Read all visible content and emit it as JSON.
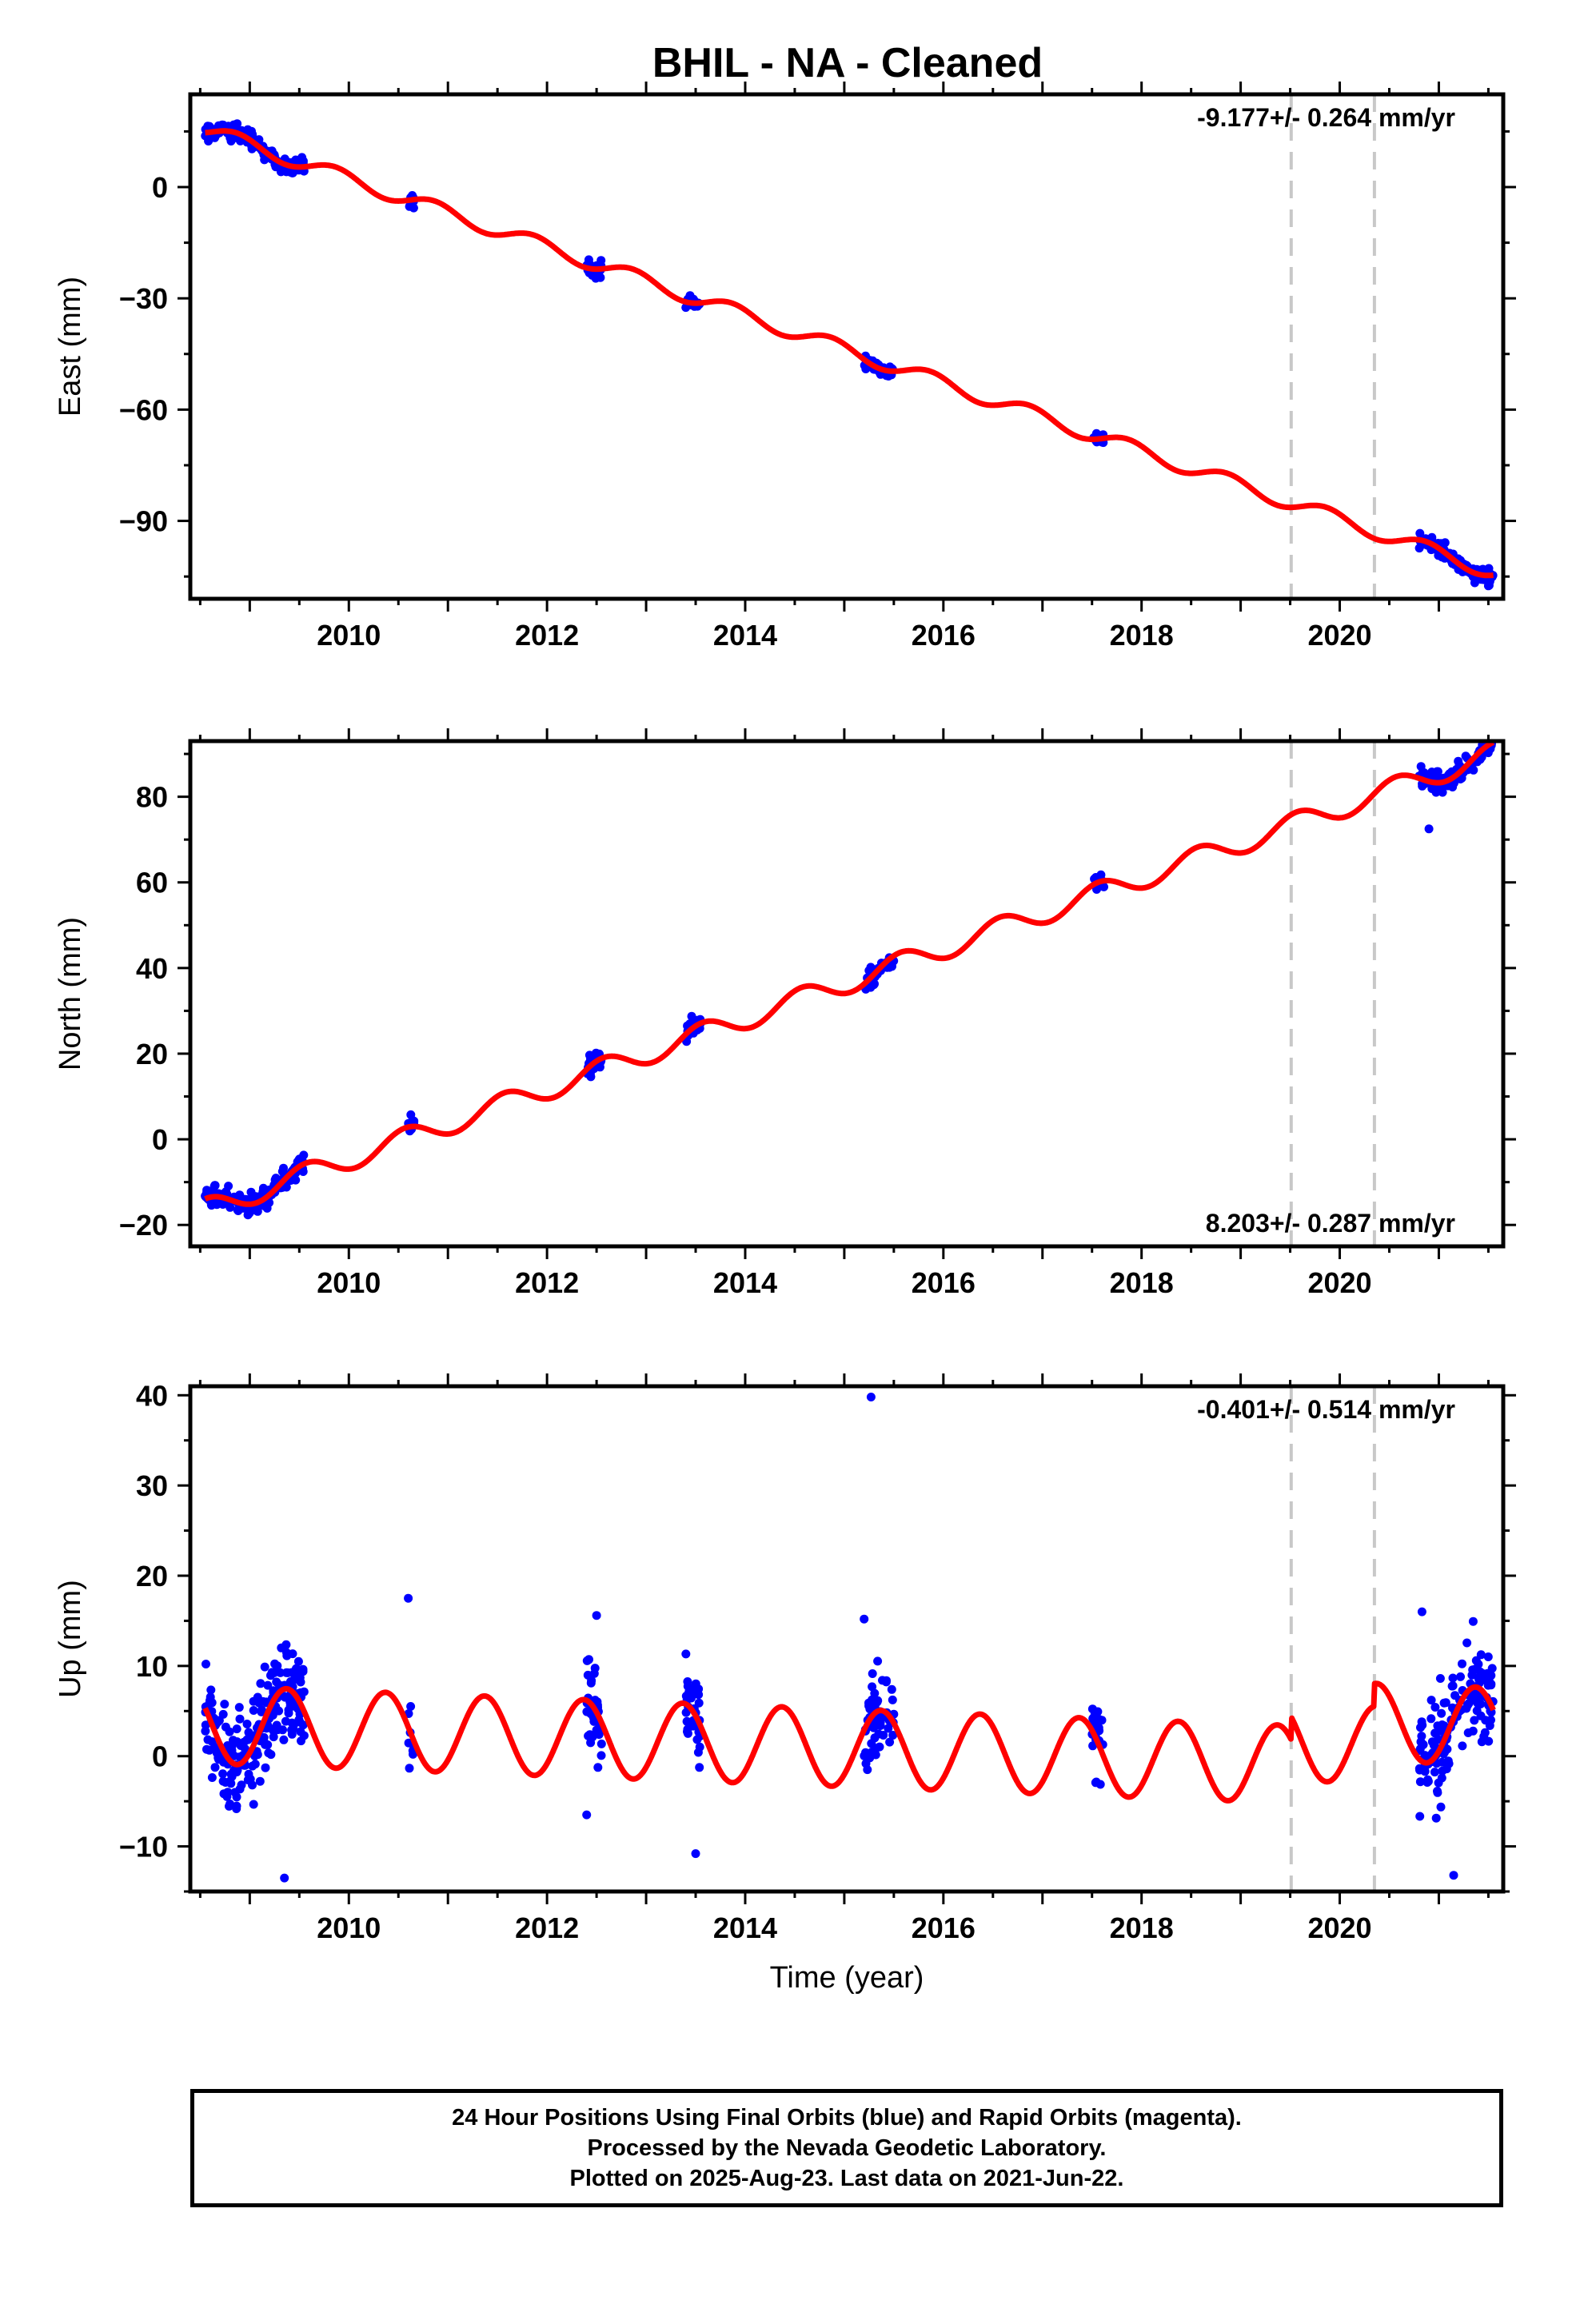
{
  "title": "BHIL  - NA - Cleaned",
  "footer": {
    "line1": "24 Hour Positions Using Final Orbits (blue) and Rapid Orbits (magenta).",
    "line2": "Processed by the Nevada Geodetic Laboratory.",
    "line3": "Plotted on 2025-Aug-23. Last data on 2021-Jun-22."
  },
  "colors": {
    "data": "#0000ff",
    "model": "#ff0000",
    "equipment_change": "#c8c8c8"
  },
  "chart_data": [
    {
      "type": "scatter",
      "component": "east",
      "title": "",
      "xlabel": "",
      "ylabel": "East (mm)",
      "rate_label": "-9.177+/- 0.264 mm/yr",
      "xlim": [
        2008.4,
        2021.65
      ],
      "ylim": [
        -111,
        25
      ],
      "xticks": [
        2010,
        2012,
        2014,
        2016,
        2018,
        2020
      ],
      "xtick_labels": [
        "2010",
        "2012",
        "2014",
        "2016",
        "2018",
        "2020"
      ],
      "yticks": [
        -90,
        -60,
        -30,
        0
      ],
      "ytick_labels": [
        "−90",
        "−60",
        "−30",
        "0"
      ],
      "rate": -9.177,
      "ref_value": 15.5,
      "annual_amplitude": 2.0,
      "annual_phase": 0.62,
      "steps": [
        {
          "x": 2019.51,
          "dy": 0.0
        },
        {
          "x": 2020.35,
          "dy": 0.0
        }
      ],
      "data_segments": [
        {
          "x0": 2008.55,
          "x1": 2009.55,
          "n": 160,
          "spread": 1.6
        },
        {
          "x0": 2010.6,
          "x1": 2010.66,
          "n": 8,
          "spread": 1.4
        },
        {
          "x0": 2012.4,
          "x1": 2012.55,
          "n": 24,
          "spread": 1.6
        },
        {
          "x0": 2013.4,
          "x1": 2013.55,
          "n": 24,
          "spread": 1.3
        },
        {
          "x0": 2015.2,
          "x1": 2015.5,
          "n": 40,
          "spread": 1.4
        },
        {
          "x0": 2017.5,
          "x1": 2017.62,
          "n": 14,
          "spread": 1.3
        },
        {
          "x0": 2020.8,
          "x1": 2021.55,
          "n": 110,
          "spread": 1.5
        }
      ],
      "outliers": [
        {
          "x": 2021.5,
          "y": -107.5
        }
      ],
      "vlines": [
        2019.51,
        2020.35
      ]
    },
    {
      "type": "scatter",
      "component": "north",
      "title": "",
      "xlabel": "",
      "ylabel": "North (mm)",
      "rate_label": "8.203+/- 0.287 mm/yr",
      "xlim": [
        2008.4,
        2021.65
      ],
      "ylim": [
        -25,
        93
      ],
      "xticks": [
        2010,
        2012,
        2014,
        2016,
        2018,
        2020
      ],
      "xtick_labels": [
        "2010",
        "2012",
        "2014",
        "2016",
        "2018",
        "2020"
      ],
      "yticks": [
        -20,
        0,
        20,
        40,
        60,
        80
      ],
      "ytick_labels": [
        "−20",
        "0",
        "20",
        "40",
        "60",
        "80"
      ],
      "rate": 8.203,
      "ref_value": -16.5,
      "annual_amplitude": 2.6,
      "annual_phase": 0.32,
      "steps": [
        {
          "x": 2019.51,
          "dy": 0.0
        },
        {
          "x": 2020.35,
          "dy": 0.0
        }
      ],
      "data_segments": [
        {
          "x0": 2008.55,
          "x1": 2009.55,
          "n": 160,
          "spread": 1.8
        },
        {
          "x0": 2010.6,
          "x1": 2010.66,
          "n": 8,
          "spread": 1.6
        },
        {
          "x0": 2012.4,
          "x1": 2012.55,
          "n": 26,
          "spread": 1.8
        },
        {
          "x0": 2013.4,
          "x1": 2013.55,
          "n": 24,
          "spread": 1.7
        },
        {
          "x0": 2015.2,
          "x1": 2015.5,
          "n": 40,
          "spread": 1.8
        },
        {
          "x0": 2017.5,
          "x1": 2017.62,
          "n": 14,
          "spread": 1.5
        },
        {
          "x0": 2020.8,
          "x1": 2021.55,
          "n": 110,
          "spread": 1.7
        }
      ],
      "outliers": [
        {
          "x": 2010.63,
          "y": 4.0
        },
        {
          "x": 2020.9,
          "y": 72.5
        }
      ],
      "vlines": [
        2019.51,
        2020.35
      ]
    },
    {
      "type": "scatter",
      "component": "up",
      "title": "",
      "xlabel": "Time (year)",
      "ylabel": "Up (mm)",
      "rate_label": "-0.401+/- 0.514 mm/yr",
      "xlim": [
        2008.4,
        2021.65
      ],
      "ylim": [
        -15,
        41
      ],
      "xticks": [
        2010,
        2012,
        2014,
        2016,
        2018,
        2020
      ],
      "xtick_labels": [
        "2010",
        "2012",
        "2014",
        "2016",
        "2018",
        "2020"
      ],
      "yticks": [
        -10,
        0,
        10,
        20,
        30,
        40
      ],
      "ytick_labels": [
        "−10",
        "0",
        "10",
        "20",
        "30",
        "40"
      ],
      "rate": -0.401,
      "ref_value": 3.5,
      "annual_amplitude": 4.3,
      "annual_phase": 0.12,
      "steps": [
        {
          "x": 2019.51,
          "dy": 2.5
        },
        {
          "x": 2020.35,
          "dy": 2.5
        }
      ],
      "data_segments": [
        {
          "x0": 2008.55,
          "x1": 2009.55,
          "n": 220,
          "spread": 4.0
        },
        {
          "x0": 2010.6,
          "x1": 2010.66,
          "n": 8,
          "spread": 4.5
        },
        {
          "x0": 2012.4,
          "x1": 2012.55,
          "n": 35,
          "spread": 4.0
        },
        {
          "x0": 2013.4,
          "x1": 2013.55,
          "n": 35,
          "spread": 3.5
        },
        {
          "x0": 2015.2,
          "x1": 2015.5,
          "n": 60,
          "spread": 3.8
        },
        {
          "x0": 2017.5,
          "x1": 2017.62,
          "n": 25,
          "spread": 3.5
        },
        {
          "x0": 2020.8,
          "x1": 2021.55,
          "n": 150,
          "spread": 3.8
        }
      ],
      "outliers": [
        {
          "x": 2015.27,
          "y": 39.8
        },
        {
          "x": 2010.6,
          "y": 17.5
        },
        {
          "x": 2012.5,
          "y": 15.6
        },
        {
          "x": 2015.2,
          "y": 15.2
        },
        {
          "x": 2020.83,
          "y": 16.0
        },
        {
          "x": 2021.15,
          "y": -13.2
        },
        {
          "x": 2009.35,
          "y": -13.5
        },
        {
          "x": 2012.4,
          "y": -6.5
        },
        {
          "x": 2013.5,
          "y": -10.8
        }
      ],
      "vlines": [
        2019.51,
        2020.35
      ]
    }
  ]
}
